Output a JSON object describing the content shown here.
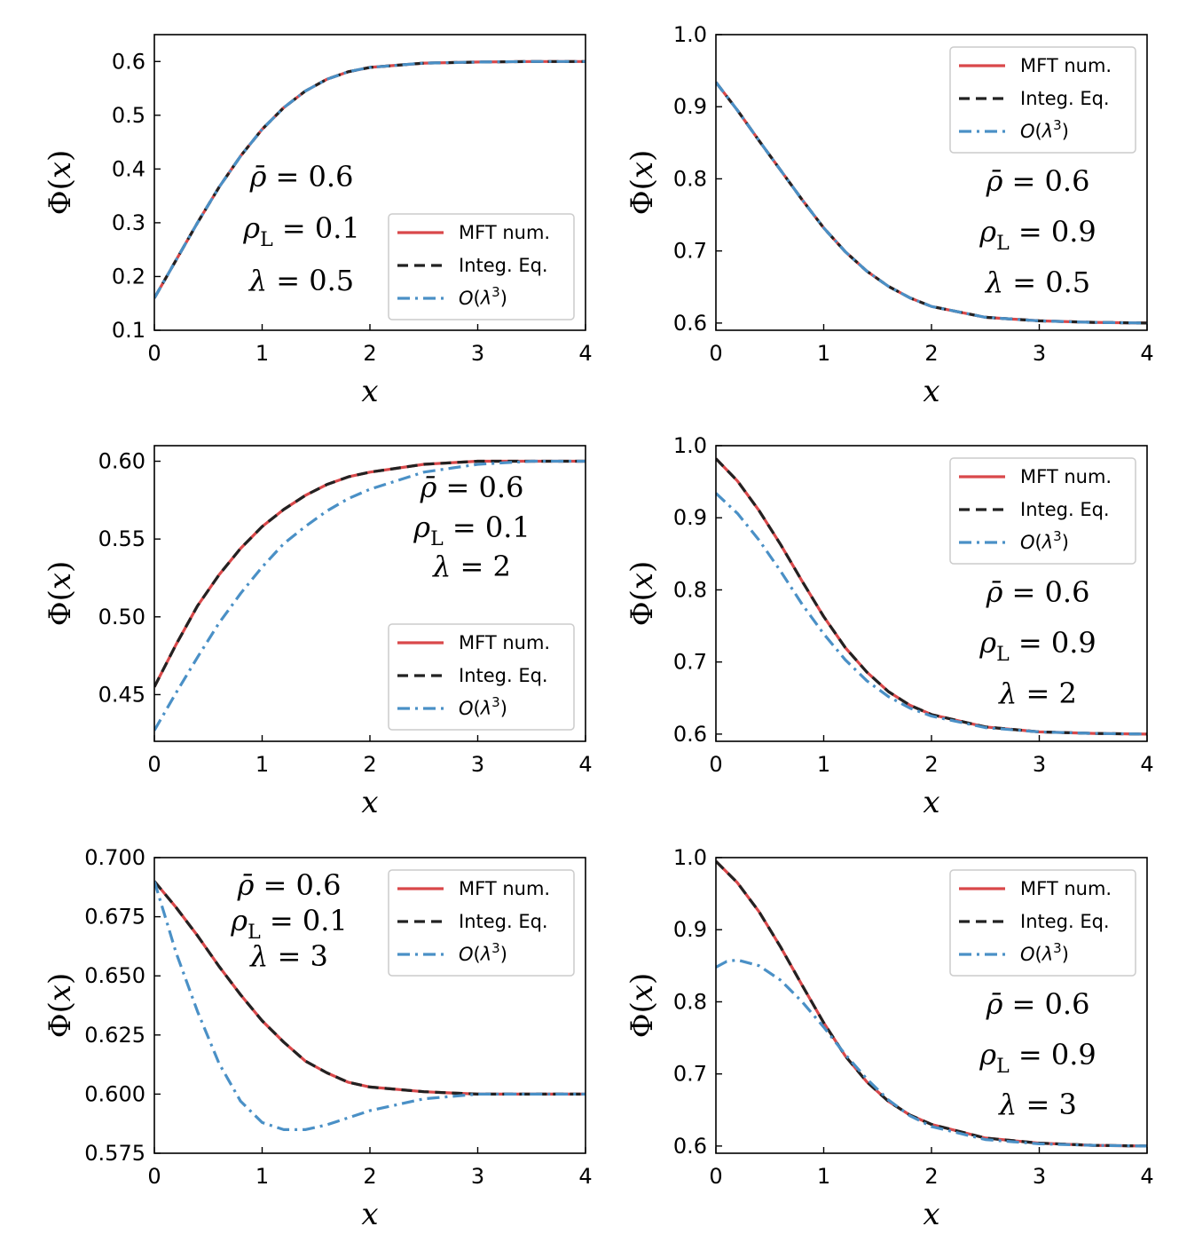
{
  "colors": {
    "mft": "#d9484a",
    "integ": "#222222",
    "olambda": "#4a90c6"
  },
  "legend": {
    "mft": "MFT num.",
    "integ": "Integ. Eq.",
    "olambda": "O(λ³)"
  },
  "chart_data": [
    {
      "type": "line",
      "xlabel": "x",
      "ylabel": "Φ(x)",
      "xlim": [
        0,
        4
      ],
      "ylim": [
        0.1,
        0.65
      ],
      "xticks": [
        "0",
        "1",
        "2",
        "3",
        "4"
      ],
      "yticks": [
        "0.1",
        "0.2",
        "0.3",
        "0.4",
        "0.5",
        "0.6"
      ],
      "params": [
        "ρ̄ = 0.6",
        "ρL = 0.1",
        "λ = 0.5"
      ],
      "legend_loc": "lower-right",
      "series": [
        {
          "name": "MFT num.",
          "x": [
            0,
            0.2,
            0.4,
            0.6,
            0.8,
            1.0,
            1.2,
            1.4,
            1.6,
            1.8,
            2.0,
            2.5,
            3.0,
            3.5,
            4.0
          ],
          "y": [
            0.16,
            0.23,
            0.3,
            0.366,
            0.424,
            0.474,
            0.514,
            0.545,
            0.567,
            0.581,
            0.589,
            0.597,
            0.599,
            0.6,
            0.6
          ]
        },
        {
          "name": "Integ. Eq.",
          "x": [
            0,
            0.2,
            0.4,
            0.6,
            0.8,
            1.0,
            1.2,
            1.4,
            1.6,
            1.8,
            2.0,
            2.5,
            3.0,
            3.5,
            4.0
          ],
          "y": [
            0.16,
            0.23,
            0.3,
            0.366,
            0.424,
            0.474,
            0.514,
            0.545,
            0.567,
            0.581,
            0.589,
            0.597,
            0.599,
            0.6,
            0.6
          ]
        },
        {
          "name": "O(λ³)",
          "x": [
            0,
            0.2,
            0.4,
            0.6,
            0.8,
            1.0,
            1.2,
            1.4,
            1.6,
            1.8,
            2.0,
            2.5,
            3.0,
            3.5,
            4.0
          ],
          "y": [
            0.16,
            0.23,
            0.3,
            0.366,
            0.424,
            0.474,
            0.514,
            0.545,
            0.567,
            0.581,
            0.589,
            0.597,
            0.599,
            0.6,
            0.6
          ]
        }
      ]
    },
    {
      "type": "line",
      "xlabel": "x",
      "ylabel": "Φ(x)",
      "xlim": [
        0,
        4
      ],
      "ylim": [
        0.59,
        1.0
      ],
      "xticks": [
        "0",
        "1",
        "2",
        "3",
        "4"
      ],
      "yticks": [
        "0.6",
        "0.7",
        "0.8",
        "0.9",
        "1.0"
      ],
      "params": [
        "ρ̄ = 0.6",
        "ρL = 0.9",
        "λ = 0.5"
      ],
      "legend_loc": "upper-right",
      "series": [
        {
          "name": "MFT num.",
          "x": [
            0,
            0.2,
            0.4,
            0.6,
            0.8,
            1.0,
            1.2,
            1.4,
            1.6,
            1.8,
            2.0,
            2.5,
            3.0,
            3.5,
            4.0
          ],
          "y": [
            0.934,
            0.895,
            0.853,
            0.812,
            0.771,
            0.732,
            0.699,
            0.672,
            0.651,
            0.635,
            0.623,
            0.608,
            0.603,
            0.601,
            0.6
          ]
        },
        {
          "name": "Integ. Eq.",
          "x": [
            0,
            0.2,
            0.4,
            0.6,
            0.8,
            1.0,
            1.2,
            1.4,
            1.6,
            1.8,
            2.0,
            2.5,
            3.0,
            3.5,
            4.0
          ],
          "y": [
            0.934,
            0.895,
            0.853,
            0.812,
            0.771,
            0.732,
            0.699,
            0.672,
            0.651,
            0.635,
            0.623,
            0.608,
            0.603,
            0.601,
            0.6
          ]
        },
        {
          "name": "O(λ³)",
          "x": [
            0,
            0.2,
            0.4,
            0.6,
            0.8,
            1.0,
            1.2,
            1.4,
            1.6,
            1.8,
            2.0,
            2.5,
            3.0,
            3.5,
            4.0
          ],
          "y": [
            0.934,
            0.895,
            0.853,
            0.812,
            0.771,
            0.732,
            0.699,
            0.672,
            0.651,
            0.635,
            0.623,
            0.608,
            0.603,
            0.601,
            0.6
          ]
        }
      ]
    },
    {
      "type": "line",
      "xlabel": "x",
      "ylabel": "Φ(x)",
      "xlim": [
        0,
        4
      ],
      "ylim": [
        0.42,
        0.61
      ],
      "xticks": [
        "0",
        "1",
        "2",
        "3",
        "4"
      ],
      "yticks": [
        "0.45",
        "0.50",
        "0.55",
        "0.60"
      ],
      "params": [
        "ρ̄ = 0.6",
        "ρL = 0.1",
        "λ = 2"
      ],
      "legend_loc": "lower-right",
      "series": [
        {
          "name": "MFT num.",
          "x": [
            0,
            0.2,
            0.4,
            0.6,
            0.8,
            1.0,
            1.2,
            1.4,
            1.6,
            1.8,
            2.0,
            2.5,
            3.0,
            3.5,
            4.0
          ],
          "y": [
            0.455,
            0.482,
            0.507,
            0.527,
            0.544,
            0.558,
            0.569,
            0.578,
            0.585,
            0.59,
            0.593,
            0.598,
            0.6,
            0.6,
            0.6
          ]
        },
        {
          "name": "Integ. Eq.",
          "x": [
            0,
            0.2,
            0.4,
            0.6,
            0.8,
            1.0,
            1.2,
            1.4,
            1.6,
            1.8,
            2.0,
            2.5,
            3.0,
            3.5,
            4.0
          ],
          "y": [
            0.455,
            0.482,
            0.507,
            0.527,
            0.544,
            0.558,
            0.569,
            0.578,
            0.585,
            0.59,
            0.593,
            0.598,
            0.6,
            0.6,
            0.6
          ]
        },
        {
          "name": "O(λ³)",
          "x": [
            0,
            0.2,
            0.4,
            0.6,
            0.8,
            1.0,
            1.2,
            1.4,
            1.6,
            1.8,
            2.0,
            2.5,
            3.0,
            3.5,
            4.0
          ],
          "y": [
            0.427,
            0.451,
            0.474,
            0.496,
            0.515,
            0.532,
            0.547,
            0.558,
            0.568,
            0.576,
            0.582,
            0.593,
            0.598,
            0.6,
            0.6
          ]
        }
      ]
    },
    {
      "type": "line",
      "xlabel": "x",
      "ylabel": "Φ(x)",
      "xlim": [
        0,
        4
      ],
      "ylim": [
        0.59,
        1.0
      ],
      "xticks": [
        "0",
        "1",
        "2",
        "3",
        "4"
      ],
      "yticks": [
        "0.6",
        "0.7",
        "0.8",
        "0.9",
        "1.0"
      ],
      "params": [
        "ρ̄ = 0.6",
        "ρL = 0.9",
        "λ = 2"
      ],
      "legend_loc": "upper-right",
      "series": [
        {
          "name": "MFT num.",
          "x": [
            0,
            0.2,
            0.4,
            0.6,
            0.8,
            1.0,
            1.2,
            1.4,
            1.6,
            1.8,
            2.0,
            2.5,
            3.0,
            3.5,
            4.0
          ],
          "y": [
            0.982,
            0.951,
            0.91,
            0.863,
            0.812,
            0.763,
            0.72,
            0.686,
            0.659,
            0.64,
            0.627,
            0.61,
            0.603,
            0.601,
            0.6
          ]
        },
        {
          "name": "Integ. Eq.",
          "x": [
            0,
            0.2,
            0.4,
            0.6,
            0.8,
            1.0,
            1.2,
            1.4,
            1.6,
            1.8,
            2.0,
            2.5,
            3.0,
            3.5,
            4.0
          ],
          "y": [
            0.982,
            0.951,
            0.91,
            0.863,
            0.812,
            0.763,
            0.72,
            0.686,
            0.659,
            0.64,
            0.627,
            0.61,
            0.603,
            0.601,
            0.6
          ]
        },
        {
          "name": "O(λ³)",
          "x": [
            0,
            0.2,
            0.4,
            0.6,
            0.8,
            1.0,
            1.2,
            1.4,
            1.6,
            1.8,
            2.0,
            2.5,
            3.0,
            3.5,
            4.0
          ],
          "y": [
            0.934,
            0.906,
            0.869,
            0.826,
            0.78,
            0.739,
            0.703,
            0.674,
            0.652,
            0.636,
            0.625,
            0.609,
            0.603,
            0.601,
            0.6
          ]
        }
      ]
    },
    {
      "type": "line",
      "xlabel": "x",
      "ylabel": "Φ(x)",
      "xlim": [
        0,
        4
      ],
      "ylim": [
        0.575,
        0.7
      ],
      "xticks": [
        "0",
        "1",
        "2",
        "3",
        "4"
      ],
      "yticks": [
        "0.575",
        "0.600",
        "0.625",
        "0.650",
        "0.675",
        "0.700"
      ],
      "params": [
        "ρ̄ = 0.6",
        "ρL = 0.1",
        "λ = 3"
      ],
      "legend_loc": "upper-right",
      "series": [
        {
          "name": "MFT num.",
          "x": [
            0,
            0.2,
            0.4,
            0.6,
            0.8,
            1.0,
            1.2,
            1.4,
            1.6,
            1.8,
            2.0,
            2.5,
            3.0,
            3.5,
            4.0
          ],
          "y": [
            0.69,
            0.679,
            0.667,
            0.654,
            0.642,
            0.631,
            0.622,
            0.614,
            0.609,
            0.605,
            0.603,
            0.601,
            0.6,
            0.6,
            0.6
          ]
        },
        {
          "name": "Integ. Eq.",
          "x": [
            0,
            0.2,
            0.4,
            0.6,
            0.8,
            1.0,
            1.2,
            1.4,
            1.6,
            1.8,
            2.0,
            2.5,
            3.0,
            3.5,
            4.0
          ],
          "y": [
            0.69,
            0.679,
            0.667,
            0.654,
            0.642,
            0.631,
            0.622,
            0.614,
            0.609,
            0.605,
            0.603,
            0.601,
            0.6,
            0.6,
            0.6
          ]
        },
        {
          "name": "O(λ³)",
          "x": [
            0,
            0.1,
            0.2,
            0.4,
            0.6,
            0.8,
            1.0,
            1.2,
            1.4,
            1.6,
            1.8,
            2.0,
            2.5,
            3.0,
            3.5,
            4.0
          ],
          "y": [
            0.69,
            0.675,
            0.66,
            0.635,
            0.613,
            0.597,
            0.588,
            0.585,
            0.585,
            0.587,
            0.59,
            0.593,
            0.598,
            0.6,
            0.6,
            0.6
          ]
        }
      ]
    },
    {
      "type": "line",
      "xlabel": "x",
      "ylabel": "Φ(x)",
      "xlim": [
        0,
        4
      ],
      "ylim": [
        0.59,
        1.0
      ],
      "xticks": [
        "0",
        "1",
        "2",
        "3",
        "4"
      ],
      "yticks": [
        "0.6",
        "0.7",
        "0.8",
        "0.9",
        "1.0"
      ],
      "params": [
        "ρ̄ = 0.6",
        "ρL = 0.9",
        "λ = 3"
      ],
      "legend_loc": "upper-right",
      "series": [
        {
          "name": "MFT num.",
          "x": [
            0,
            0.2,
            0.4,
            0.6,
            0.8,
            1.0,
            1.2,
            1.4,
            1.6,
            1.8,
            2.0,
            2.5,
            3.0,
            3.5,
            4.0
          ],
          "y": [
            0.995,
            0.965,
            0.925,
            0.876,
            0.823,
            0.771,
            0.725,
            0.689,
            0.662,
            0.643,
            0.63,
            0.611,
            0.604,
            0.601,
            0.6
          ]
        },
        {
          "name": "Integ. Eq.",
          "x": [
            0,
            0.2,
            0.4,
            0.6,
            0.8,
            1.0,
            1.2,
            1.4,
            1.6,
            1.8,
            2.0,
            2.5,
            3.0,
            3.5,
            4.0
          ],
          "y": [
            0.995,
            0.965,
            0.925,
            0.876,
            0.823,
            0.771,
            0.725,
            0.689,
            0.662,
            0.643,
            0.63,
            0.611,
            0.604,
            0.601,
            0.6
          ]
        },
        {
          "name": "O(λ³)",
          "x": [
            0,
            0.1,
            0.2,
            0.4,
            0.6,
            0.8,
            1.0,
            1.2,
            1.4,
            1.6,
            1.8,
            2.0,
            2.5,
            3.0,
            3.5,
            4.0
          ],
          "y": [
            0.848,
            0.856,
            0.858,
            0.85,
            0.83,
            0.8,
            0.765,
            0.727,
            0.693,
            0.664,
            0.642,
            0.627,
            0.609,
            0.603,
            0.601,
            0.6
          ]
        }
      ]
    }
  ]
}
